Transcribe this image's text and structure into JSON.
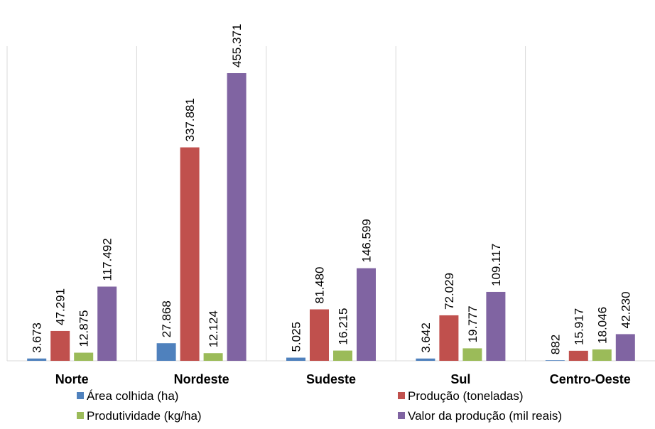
{
  "chart_data": {
    "type": "bar",
    "title": "",
    "xlabel": "",
    "ylabel": "",
    "categories": [
      "Norte",
      "Nordeste",
      "Sudeste",
      "Sul",
      "Centro-Oeste"
    ],
    "series": [
      {
        "name": "Área colhida (ha)",
        "color": "#4F81BD",
        "values": [
          3673,
          27868,
          5025,
          3642,
          882
        ],
        "labels": [
          "3.673",
          "27.868",
          "5.025",
          "3.642",
          "882"
        ]
      },
      {
        "name": "Produção (toneladas)",
        "color": "#C0504D",
        "values": [
          47291,
          337881,
          81480,
          72029,
          15917
        ],
        "labels": [
          "47.291",
          "337.881",
          "81.480",
          "72.029",
          "15.917"
        ]
      },
      {
        "name": "Produtividade (kg/ha)",
        "color": "#9BBB59",
        "values": [
          12875,
          12124,
          16215,
          19777,
          18046
        ],
        "labels": [
          "12.875",
          "12.124",
          "16.215",
          "19.777",
          "18.046"
        ]
      },
      {
        "name": "Valor da produção (mil reais)",
        "color": "#8064A2",
        "values": [
          117492,
          455371,
          146599,
          109117,
          42230
        ],
        "labels": [
          "117.492",
          "455.371",
          "146.599",
          "109.117",
          "42.230"
        ]
      }
    ],
    "ylim": [
      0,
      460000
    ],
    "grid": false,
    "legend_position": "bottom"
  }
}
